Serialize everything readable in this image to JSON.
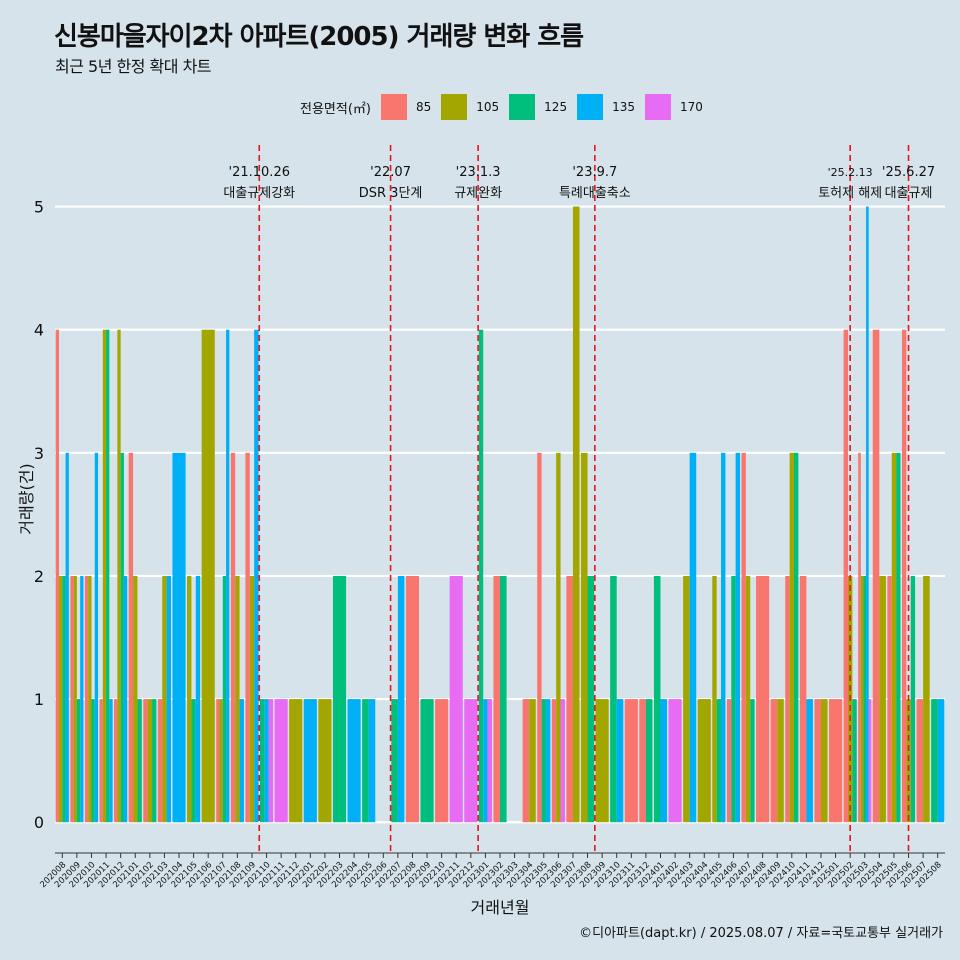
{
  "title": "신봉마을자이2차 아파트(2005) 거래량 변화 흐름",
  "subtitle": "최근 5년 한정 확대 차트",
  "caption": "©디아파트(dapt.kr) / 2025.08.07 / 자료=국토교통부 실거래가",
  "legend": {
    "title": "전용면적(㎡)",
    "items": [
      {
        "label": "85",
        "color": "#f8766d"
      },
      {
        "label": "105",
        "color": "#a3a500"
      },
      {
        "label": "125",
        "color": "#00bf7d"
      },
      {
        "label": "135",
        "color": "#00b0f6"
      },
      {
        "label": "170",
        "color": "#e76bf3"
      }
    ]
  },
  "chart_data": {
    "type": "bar",
    "xlabel": "거래년월",
    "ylabel": "거래량(건)",
    "ylim": [
      -0.25,
      5.5
    ],
    "yticks": [
      0,
      1,
      2,
      3,
      4,
      5
    ],
    "categories": [
      "202008",
      "202009",
      "202010",
      "202011",
      "202012",
      "202101",
      "202102",
      "202103",
      "202104",
      "202105",
      "202106",
      "202107",
      "202108",
      "202109",
      "202110",
      "202111",
      "202112",
      "202201",
      "202202",
      "202203",
      "202204",
      "202205",
      "202206",
      "202207",
      "202208",
      "202209",
      "202210",
      "202211",
      "202212",
      "202301",
      "202302",
      "202303",
      "202304",
      "202305",
      "202306",
      "202307",
      "202308",
      "202309",
      "202310",
      "202311",
      "202312",
      "202401",
      "202402",
      "202403",
      "202404",
      "202405",
      "202406",
      "202407",
      "202408",
      "202409",
      "202410",
      "202411",
      "202412",
      "202501",
      "202502",
      "202503",
      "202504",
      "202505",
      "202506",
      "202507",
      "202508"
    ],
    "series": [
      {
        "name": "85",
        "color": "#f8766d",
        "values": [
          4,
          2,
          2,
          1,
          1,
          3,
          1,
          1,
          0,
          0,
          0,
          1,
          3,
          3,
          0,
          0,
          0,
          0,
          0,
          0,
          0,
          0,
          0,
          0,
          2,
          0,
          1,
          0,
          0,
          0,
          2,
          0,
          1,
          3,
          1,
          2,
          0,
          0,
          0,
          1,
          1,
          0,
          0,
          0,
          0,
          0,
          1,
          3,
          2,
          1,
          2,
          2,
          1,
          1,
          4,
          3,
          4,
          2,
          4,
          1,
          0
        ]
      },
      {
        "name": "105",
        "color": "#a3a500",
        "values": [
          2,
          2,
          2,
          4,
          4,
          2,
          1,
          2,
          0,
          2,
          4,
          1,
          2,
          2,
          0,
          0,
          1,
          0,
          1,
          0,
          0,
          0,
          0,
          0,
          0,
          0,
          0,
          0,
          0,
          0,
          0,
          0,
          1,
          0,
          3,
          5,
          3,
          1,
          0,
          0,
          0,
          0,
          0,
          2,
          1,
          2,
          0,
          2,
          0,
          1,
          3,
          0,
          1,
          0,
          2,
          2,
          2,
          3,
          1,
          2,
          0
        ]
      },
      {
        "name": "125",
        "color": "#00bf7d",
        "values": [
          2,
          1,
          1,
          4,
          3,
          1,
          1,
          0,
          0,
          1,
          0,
          2,
          0,
          0,
          1,
          0,
          0,
          0,
          0,
          2,
          0,
          1,
          0,
          1,
          0,
          1,
          0,
          0,
          0,
          4,
          2,
          0,
          0,
          1,
          0,
          0,
          2,
          0,
          2,
          0,
          1,
          2,
          0,
          0,
          0,
          1,
          2,
          1,
          0,
          0,
          3,
          0,
          0,
          0,
          1,
          2,
          0,
          3,
          2,
          0,
          1
        ]
      },
      {
        "name": "135",
        "color": "#00b0f6",
        "values": [
          3,
          2,
          3,
          1,
          2,
          0,
          0,
          2,
          3,
          2,
          0,
          4,
          1,
          4,
          1,
          0,
          0,
          1,
          0,
          0,
          1,
          1,
          0,
          2,
          0,
          0,
          0,
          0,
          0,
          1,
          0,
          0,
          0,
          1,
          0,
          0,
          0,
          0,
          1,
          0,
          0,
          1,
          0,
          3,
          0,
          3,
          3,
          0,
          0,
          0,
          0,
          1,
          0,
          0,
          0,
          5,
          0,
          0,
          0,
          0,
          1
        ]
      },
      {
        "name": "170",
        "color": "#e76bf3",
        "values": [
          0,
          0,
          0,
          0,
          0,
          0,
          0,
          0,
          0,
          0,
          0,
          0,
          0,
          0,
          1,
          1,
          0,
          0,
          0,
          0,
          0,
          0,
          0,
          0,
          0,
          0,
          0,
          2,
          1,
          1,
          0,
          0,
          0,
          0,
          1,
          0,
          0,
          0,
          0,
          0,
          0,
          0,
          1,
          0,
          0,
          0,
          0,
          0,
          0,
          0,
          0,
          0,
          0,
          0,
          0,
          1,
          0,
          0,
          0,
          0,
          0
        ]
      }
    ],
    "events": [
      {
        "at": 14.0,
        "date": "'21.10.26",
        "label": "대출규제강화"
      },
      {
        "at": 23.0,
        "date": "'22.07",
        "label": "DSR 3단계"
      },
      {
        "at": 29.0,
        "date": "'23.1.3",
        "label": "규제완화"
      },
      {
        "at": 37.0,
        "date": "'23.9.7",
        "label": "특례대출축소"
      },
      {
        "at": 54.5,
        "date": "'25.2.13",
        "label": "토허제 해제"
      },
      {
        "at": 58.5,
        "date": "'25.6.27",
        "label": "대출규제"
      }
    ]
  }
}
